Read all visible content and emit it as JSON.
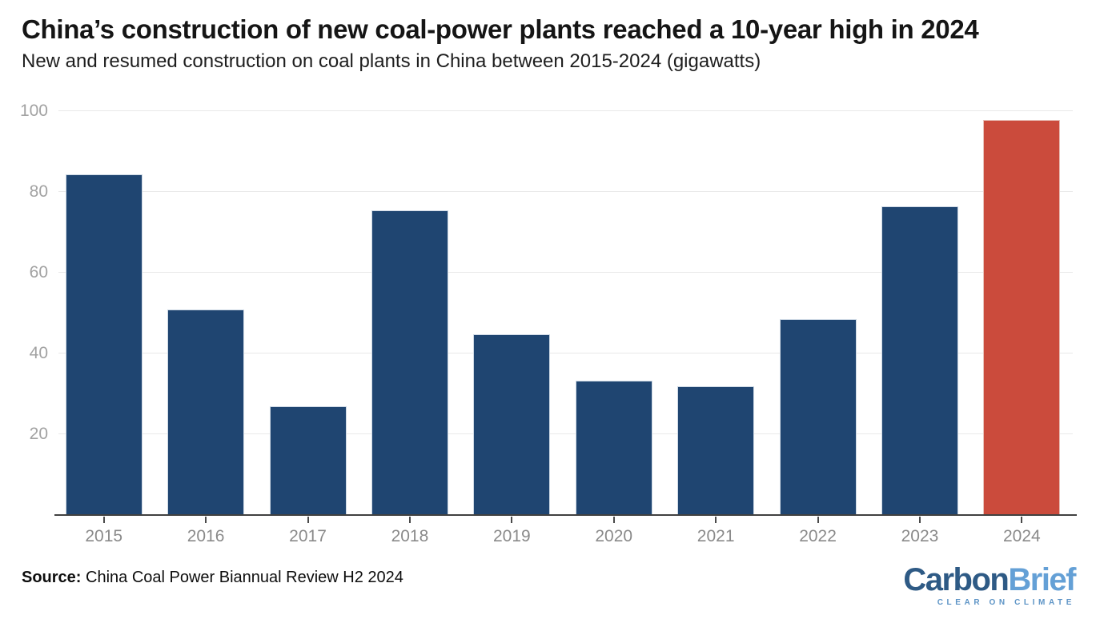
{
  "header": {
    "title": "China’s construction of new coal-power plants reached a 10-year high in 2024",
    "subtitle": "New and resumed construction on coal plants in China between 2015-2024 (gigawatts)"
  },
  "chart_data": {
    "type": "bar",
    "title": "China’s construction of new coal-power plants reached a 10-year high in 2024",
    "subtitle": "New and resumed construction on coal plants in China between 2015-2024 (gigawatts)",
    "categories": [
      "2015",
      "2016",
      "2017",
      "2018",
      "2019",
      "2020",
      "2021",
      "2022",
      "2023",
      "2024"
    ],
    "values": [
      84.4,
      50.9,
      26.9,
      75.5,
      44.8,
      33.3,
      31.9,
      48.5,
      76.4,
      97.8
    ],
    "unit": "gigawatts",
    "xlabel": "",
    "ylabel": "",
    "ylim": [
      0,
      100
    ],
    "y_ticks": [
      20,
      40,
      60,
      80,
      100
    ],
    "grid": "horizontal",
    "legend": "none",
    "highlighted_category": "2024",
    "bar_color": "#1f4571",
    "bar_stroke": "#cdd8e4",
    "highlight_color": "#cb4b3c",
    "highlight_stroke": "#e8c0b8"
  },
  "footer": {
    "source_label": "Source:",
    "source_text": " China Coal Power Biannual Review H2 2024",
    "logo": {
      "part1": "Carbon",
      "part2": "Brief",
      "tagline": "CLEAR ON CLIMATE",
      "color_dark": "#2e5a85",
      "color_light": "#64a0d6",
      "color_tagline": "#5d94c6"
    }
  }
}
